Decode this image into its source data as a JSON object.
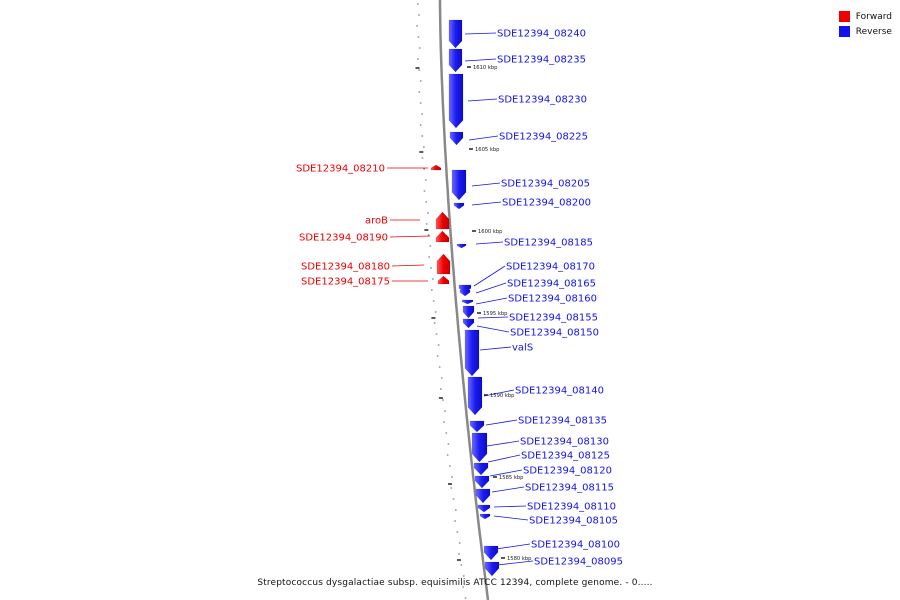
{
  "legend": {
    "forward_label": "Forward",
    "reverse_label": "Reverse",
    "forward_color": "#ee0000",
    "reverse_color": "#1212ee"
  },
  "caption": "Streptococcus dysgalactiae subsp. equisimilis ATCC 12394, complete genome. - 0.....",
  "backbone_color": "#888888",
  "scale_labels": [
    "1610 kbp",
    "1605 kbp",
    "1600 kbp",
    "1595 kbp",
    "1590 kbp",
    "1585 kbp",
    "1580 kbp"
  ],
  "forward_genes": [
    "SDE12394_08210",
    "aroB",
    "SDE12394_08190",
    "SDE12394_08180",
    "SDE12394_08175"
  ],
  "reverse_genes": [
    "SDE12394_08240",
    "SDE12394_08235",
    "SDE12394_08230",
    "SDE12394_08225",
    "SDE12394_08205",
    "SDE12394_08200",
    "SDE12394_08185",
    "SDE12394_08170",
    "SDE12394_08165",
    "SDE12394_08160",
    "SDE12394_08155",
    "SDE12394_08150",
    "valS",
    "SDE12394_08140",
    "SDE12394_08135",
    "SDE12394_08130",
    "SDE12394_08125",
    "SDE12394_08120",
    "SDE12394_08115",
    "SDE12394_08110",
    "SDE12394_08105",
    "SDE12394_08100",
    "SDE12394_08095"
  ]
}
